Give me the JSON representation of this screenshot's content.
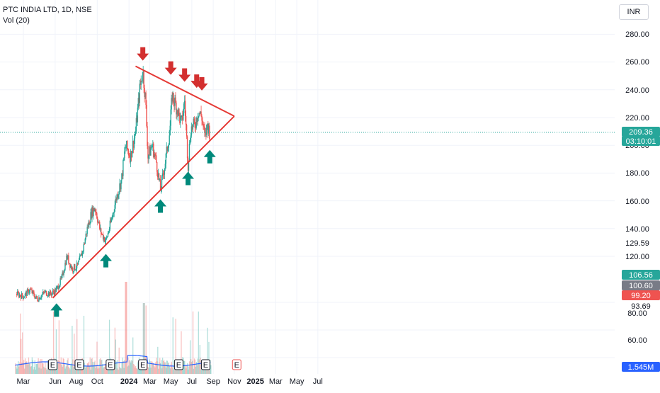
{
  "header": {
    "symbol_line": "PTC INDIA LTD, 1D, NSE",
    "volume_indicator": "Vol (20)",
    "currency": "INR"
  },
  "colors": {
    "up": "#26a69a",
    "down": "#ef5350",
    "trendline": "#e53935",
    "arrow_down": "#d32f2f",
    "arrow_up": "#00897b",
    "volume_ma": "#2962ff",
    "last_price_line": "#26a69a"
  },
  "chart_data": {
    "type": "candlestick",
    "title": "PTC INDIA LTD, 1D, NSE",
    "y_axis_ticks": [
      "280.00",
      "260.00",
      "240.00",
      "220.00",
      "200.00",
      "180.00",
      "160.00",
      "140.00",
      "129.59",
      "120.00",
      "80.00",
      "60.00"
    ],
    "x_axis_ticks": [
      "Mar",
      "Jun",
      "Aug",
      "Oct",
      "2024",
      "Mar",
      "May",
      "Jul",
      "Sep",
      "Nov",
      "2025",
      "Mar",
      "May",
      "Jul"
    ],
    "price_labels": [
      {
        "text": "209.36",
        "color": "#26a69a"
      },
      {
        "text": "03:10:01",
        "color": "#26a69a"
      },
      {
        "text": "106.56",
        "color": "#26a69a"
      },
      {
        "text": "100.60",
        "color": "#787b86"
      },
      {
        "text": "99.20",
        "color": "#ef5350"
      },
      {
        "text": "93.69",
        "color": "plain"
      },
      {
        "text": "1.545M",
        "color": "#2962ff"
      }
    ],
    "last_price": 209.36,
    "price_path": [
      {
        "x": "2023-02-10",
        "y": 93
      },
      {
        "x": "2023-03-01",
        "y": 91
      },
      {
        "x": "2023-03-20",
        "y": 96
      },
      {
        "x": "2023-04-10",
        "y": 89
      },
      {
        "x": "2023-05-01",
        "y": 94
      },
      {
        "x": "2023-05-20",
        "y": 93
      },
      {
        "x": "2023-06-05",
        "y": 96
      },
      {
        "x": "2023-06-20",
        "y": 104
      },
      {
        "x": "2023-07-05",
        "y": 120
      },
      {
        "x": "2023-07-20",
        "y": 111
      },
      {
        "x": "2023-08-05",
        "y": 113
      },
      {
        "x": "2023-08-20",
        "y": 124
      },
      {
        "x": "2023-09-01",
        "y": 139
      },
      {
        "x": "2023-09-15",
        "y": 152
      },
      {
        "x": "2023-09-25",
        "y": 155
      },
      {
        "x": "2023-10-10",
        "y": 138
      },
      {
        "x": "2023-10-26",
        "y": 131
      },
      {
        "x": "2023-11-10",
        "y": 145
      },
      {
        "x": "2023-11-25",
        "y": 162
      },
      {
        "x": "2023-12-10",
        "y": 175
      },
      {
        "x": "2023-12-22",
        "y": 200
      },
      {
        "x": "2024-01-05",
        "y": 192
      },
      {
        "x": "2024-01-20",
        "y": 210
      },
      {
        "x": "2024-02-01",
        "y": 240
      },
      {
        "x": "2024-02-10",
        "y": 254
      },
      {
        "x": "2024-02-18",
        "y": 232
      },
      {
        "x": "2024-02-25",
        "y": 192
      },
      {
        "x": "2024-03-08",
        "y": 200
      },
      {
        "x": "2024-03-20",
        "y": 188
      },
      {
        "x": "2024-04-01",
        "y": 168
      },
      {
        "x": "2024-04-15",
        "y": 188
      },
      {
        "x": "2024-04-28",
        "y": 210
      },
      {
        "x": "2024-05-05",
        "y": 236
      },
      {
        "x": "2024-05-20",
        "y": 226
      },
      {
        "x": "2024-06-01",
        "y": 215
      },
      {
        "x": "2024-06-10",
        "y": 232
      },
      {
        "x": "2024-06-20",
        "y": 186
      },
      {
        "x": "2024-06-28",
        "y": 212
      },
      {
        "x": "2024-07-10",
        "y": 215
      },
      {
        "x": "2024-07-20",
        "y": 225
      },
      {
        "x": "2024-07-30",
        "y": 220
      },
      {
        "x": "2024-08-08",
        "y": 205
      },
      {
        "x": "2024-08-15",
        "y": 215
      },
      {
        "x": "2024-08-22",
        "y": 209
      }
    ],
    "resistance_line": [
      {
        "x": "2024-01-20",
        "y": 257
      },
      {
        "x": "2024-11-01",
        "y": 221
      }
    ],
    "support_line": [
      {
        "x": "2023-05-25",
        "y": 90
      },
      {
        "x": "2024-11-01",
        "y": 221
      }
    ],
    "resistance_touches": [
      "2024-02-10",
      "2024-05-01",
      "2024-06-10",
      "2024-07-15",
      "2024-07-30"
    ],
    "support_touches": [
      "2023-06-05",
      "2023-10-26",
      "2024-04-01",
      "2024-06-20",
      "2024-08-22"
    ],
    "earnings_markers": [
      "2023-05-25",
      "2023-08-10",
      "2023-11-08",
      "2024-02-10",
      "2024-05-24",
      "2024-08-10",
      "2024-11-08"
    ],
    "gridlines": true
  }
}
